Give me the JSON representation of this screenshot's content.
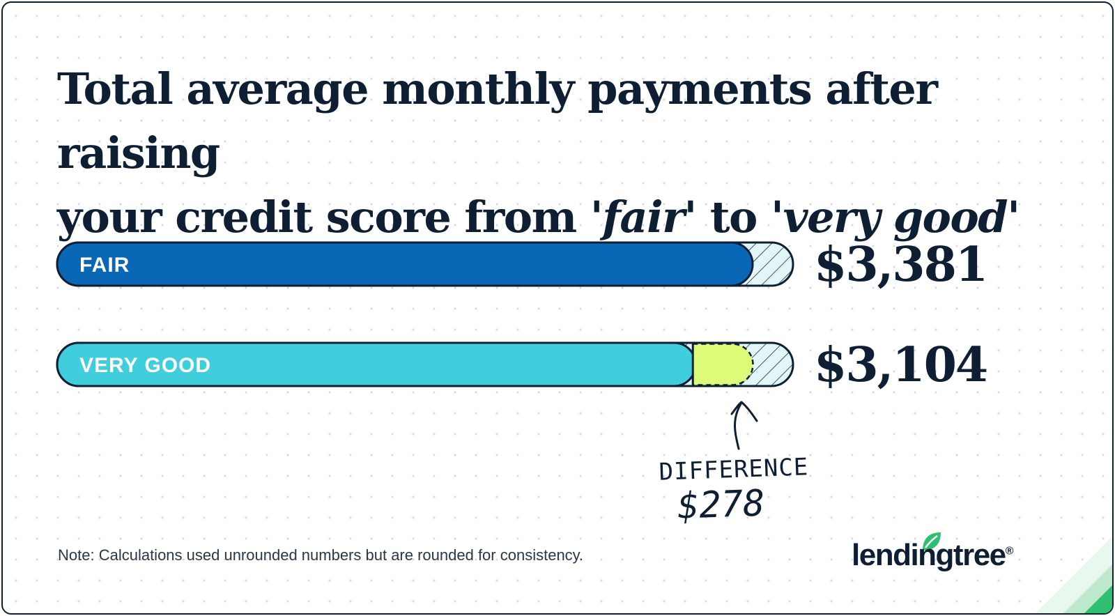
{
  "chart_data": {
    "type": "bar",
    "orientation": "horizontal",
    "title_parts": {
      "line1": "Total average monthly payments after raising",
      "line2_a": "your credit score from '",
      "em1": "fair",
      "line2_b": "' to '",
      "em2": "very good",
      "line2_c": "'"
    },
    "categories": [
      "FAIR",
      "VERY GOOD"
    ],
    "values": [
      3381,
      3104
    ],
    "value_labels": [
      "$3,381",
      "$3,104"
    ],
    "bar_colors": [
      "#0a67b5",
      "#40cddc"
    ],
    "difference_color": "#dcfb79",
    "annotation": {
      "label": "DIFFERENCE",
      "value": "$278"
    }
  },
  "note": "Note: Calculations used unrounded numbers but are rounded for consistency.",
  "brand": {
    "name": "lendingtree",
    "mark": "®",
    "accent": "#2fbf71"
  },
  "colors": {
    "text": "#0f1f33",
    "track": "#e3f6f7"
  }
}
